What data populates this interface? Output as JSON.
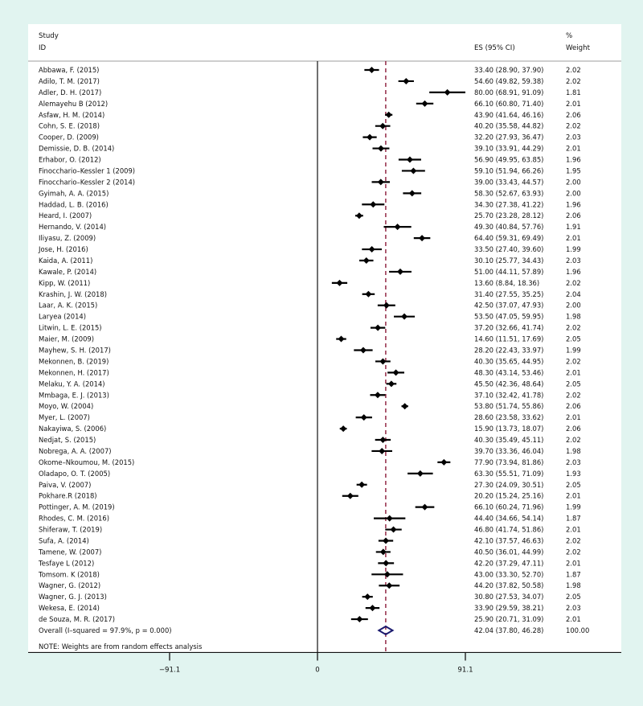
{
  "chart_data": {
    "type": "forest",
    "title": "",
    "headers": {
      "study_line1": "Study",
      "study_line2": "ID",
      "es": "ES (95% CI)",
      "weight_line1": "%",
      "weight_line2": "Weight"
    },
    "studies": [
      {
        "id": "Abbawa, F. (2015)",
        "es": 33.4,
        "lo": 28.9,
        "hi": 37.9,
        "weight": "2.02"
      },
      {
        "id": "Adilo, T. M. (2017)",
        "es": 54.6,
        "lo": 49.82,
        "hi": 59.38,
        "weight": "2.02"
      },
      {
        "id": "Adler, D. H. (2017)",
        "es": 80.0,
        "lo": 68.91,
        "hi": 91.09,
        "weight": "1.81"
      },
      {
        "id": "Alemayehu B (2012)",
        "es": 66.1,
        "lo": 60.8,
        "hi": 71.4,
        "weight": "2.01"
      },
      {
        "id": "Asfaw, H. M. (2014)",
        "es": 43.9,
        "lo": 41.64,
        "hi": 46.16,
        "weight": "2.06"
      },
      {
        "id": "Cohn, S. E. (2018)",
        "es": 40.2,
        "lo": 35.58,
        "hi": 44.82,
        "weight": "2.02"
      },
      {
        "id": "Cooper, D. (2009)",
        "es": 32.2,
        "lo": 27.93,
        "hi": 36.47,
        "weight": "2.03"
      },
      {
        "id": "Demissie, D. B. (2014)",
        "es": 39.1,
        "lo": 33.91,
        "hi": 44.29,
        "weight": "2.01"
      },
      {
        "id": "Erhabor, O. (2012)",
        "es": 56.9,
        "lo": 49.95,
        "hi": 63.85,
        "weight": "1.96"
      },
      {
        "id": "Finocchario–Kessler  1 (2009)",
        "es": 59.1,
        "lo": 51.94,
        "hi": 66.26,
        "weight": "1.95"
      },
      {
        "id": "Finocchario–Kessler  2 (2014)",
        "es": 39.0,
        "lo": 33.43,
        "hi": 44.57,
        "weight": "2.00"
      },
      {
        "id": "Gyimah, A. A. (2015)",
        "es": 58.3,
        "lo": 52.67,
        "hi": 63.93,
        "weight": "2.00"
      },
      {
        "id": "Haddad, L. B. (2016)",
        "es": 34.3,
        "lo": 27.38,
        "hi": 41.22,
        "weight": "1.96"
      },
      {
        "id": "Heard, I. (2007)",
        "es": 25.7,
        "lo": 23.28,
        "hi": 28.12,
        "weight": "2.06"
      },
      {
        "id": "Hernando, V. (2014)",
        "es": 49.3,
        "lo": 40.84,
        "hi": 57.76,
        "weight": "1.91"
      },
      {
        "id": "Iliyasu, Z. (2009)",
        "es": 64.4,
        "lo": 59.31,
        "hi": 69.49,
        "weight": "2.01"
      },
      {
        "id": "Jose, H. (2016)",
        "es": 33.5,
        "lo": 27.4,
        "hi": 39.6,
        "weight": "1.99"
      },
      {
        "id": "Kaida, A.  (2011)",
        "es": 30.1,
        "lo": 25.77,
        "hi": 34.43,
        "weight": "2.03"
      },
      {
        "id": "Kawale, P. (2014)",
        "es": 51.0,
        "lo": 44.11,
        "hi": 57.89,
        "weight": "1.96"
      },
      {
        "id": "Kipp, W. (2011)",
        "es": 13.6,
        "lo": 8.84,
        "hi": 18.36,
        "weight": "2.02"
      },
      {
        "id": "Krashin, J. W. (2018)",
        "es": 31.4,
        "lo": 27.55,
        "hi": 35.25,
        "weight": "2.04"
      },
      {
        "id": "Laar, A. K. (2015)",
        "es": 42.5,
        "lo": 37.07,
        "hi": 47.93,
        "weight": "2.00"
      },
      {
        "id": "Laryea (2014)",
        "es": 53.5,
        "lo": 47.05,
        "hi": 59.95,
        "weight": "1.98"
      },
      {
        "id": "Litwin, L. E. (2015)",
        "es": 37.2,
        "lo": 32.66,
        "hi": 41.74,
        "weight": "2.02"
      },
      {
        "id": "Maier, M. (2009)",
        "es": 14.6,
        "lo": 11.51,
        "hi": 17.69,
        "weight": "2.05"
      },
      {
        "id": "Mayhew, S. H. (2017)",
        "es": 28.2,
        "lo": 22.43,
        "hi": 33.97,
        "weight": "1.99"
      },
      {
        "id": "Mekonnen, B. (2019)",
        "es": 40.3,
        "lo": 35.65,
        "hi": 44.95,
        "weight": "2.02"
      },
      {
        "id": "Mekonnen, H. (2017)",
        "es": 48.3,
        "lo": 43.14,
        "hi": 53.46,
        "weight": "2.01"
      },
      {
        "id": "Melaku, Y. A. (2014)",
        "es": 45.5,
        "lo": 42.36,
        "hi": 48.64,
        "weight": "2.05"
      },
      {
        "id": "Mmbaga, E. J. (2013)",
        "es": 37.1,
        "lo": 32.42,
        "hi": 41.78,
        "weight": "2.02"
      },
      {
        "id": "Moyo, W. (2004)",
        "es": 53.8,
        "lo": 51.74,
        "hi": 55.86,
        "weight": "2.06"
      },
      {
        "id": "Myer, L. (2007)",
        "es": 28.6,
        "lo": 23.58,
        "hi": 33.62,
        "weight": "2.01"
      },
      {
        "id": "Nakayiwa, S. (2006)",
        "es": 15.9,
        "lo": 13.73,
        "hi": 18.07,
        "weight": "2.06"
      },
      {
        "id": "Nedjat, S. (2015)",
        "es": 40.3,
        "lo": 35.49,
        "hi": 45.11,
        "weight": "2.02"
      },
      {
        "id": "Nobrega, A. A. (2007)",
        "es": 39.7,
        "lo": 33.36,
        "hi": 46.04,
        "weight": "1.98"
      },
      {
        "id": "Okome–Nkoumou, M. (2015)",
        "es": 77.9,
        "lo": 73.94,
        "hi": 81.86,
        "weight": "2.03"
      },
      {
        "id": "Oladapo, O. T. (2005)",
        "es": 63.3,
        "lo": 55.51,
        "hi": 71.09,
        "weight": "1.93"
      },
      {
        "id": "Paiva, V. (2007)",
        "es": 27.3,
        "lo": 24.09,
        "hi": 30.51,
        "weight": "2.05"
      },
      {
        "id": "Pokhare.R (2018)",
        "es": 20.2,
        "lo": 15.24,
        "hi": 25.16,
        "weight": "2.01"
      },
      {
        "id": "Pottinger, A. M. (2019)",
        "es": 66.1,
        "lo": 60.24,
        "hi": 71.96,
        "weight": "1.99"
      },
      {
        "id": "Rhodes, C. M. (2016)",
        "es": 44.4,
        "lo": 34.66,
        "hi": 54.14,
        "weight": "1.87"
      },
      {
        "id": "Shiferaw, T.  (2019)",
        "es": 46.8,
        "lo": 41.74,
        "hi": 51.86,
        "weight": "2.01"
      },
      {
        "id": "Sufa, A. (2014)",
        "es": 42.1,
        "lo": 37.57,
        "hi": 46.63,
        "weight": "2.02"
      },
      {
        "id": "Tamene, W. (2007)",
        "es": 40.5,
        "lo": 36.01,
        "hi": 44.99,
        "weight": "2.02"
      },
      {
        "id": "Tesfaye L (2012)",
        "es": 42.2,
        "lo": 37.29,
        "hi": 47.11,
        "weight": "2.01"
      },
      {
        "id": "Tomsom. K (2018)",
        "es": 43.0,
        "lo": 33.3,
        "hi": 52.7,
        "weight": "1.87"
      },
      {
        "id": "Wagner, G. (2012)",
        "es": 44.2,
        "lo": 37.82,
        "hi": 50.58,
        "weight": "1.98"
      },
      {
        "id": "Wagner, G. J. (2013)",
        "es": 30.8,
        "lo": 27.53,
        "hi": 34.07,
        "weight": "2.05"
      },
      {
        "id": "Wekesa, E. (2014)",
        "es": 33.9,
        "lo": 29.59,
        "hi": 38.21,
        "weight": "2.03"
      },
      {
        "id": "de Souza, M. R. (2017)",
        "es": 25.9,
        "lo": 20.71,
        "hi": 31.09,
        "weight": "2.01"
      }
    ],
    "overall": {
      "label": "Overall  (I–squared = 97.9%, p = 0.000)",
      "es": 42.04,
      "lo": 37.8,
      "hi": 46.28,
      "weight": "100.00"
    },
    "note": "NOTE: Weights are from random effects analysis",
    "x_axis": {
      "ticks": [
        -91.1,
        0,
        91.1
      ],
      "tick_labels": [
        "−91.1",
        "0",
        "91.1"
      ],
      "range": [
        -91.1,
        91.1
      ]
    },
    "colors": {
      "background": "#e1f4f0",
      "panel": "#ffffff",
      "marker": "#000000",
      "overall_diamond": "#1a1a6e",
      "pooled_line": "#8b1a3a",
      "header_rule": "#b0b0b0"
    }
  }
}
